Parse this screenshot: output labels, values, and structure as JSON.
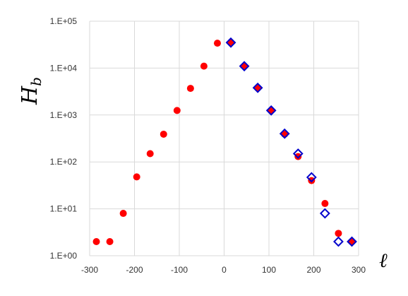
{
  "chart_data": {
    "type": "scatter",
    "title": "",
    "xlabel": "ℓ",
    "ylabel": "H",
    "ylabel_subscript": "b",
    "xlim": [
      -300,
      300
    ],
    "ylim": [
      1,
      100000
    ],
    "yscale": "log",
    "grid": true,
    "x_ticks": [
      -300,
      -200,
      -100,
      0,
      100,
      200,
      300
    ],
    "x_tick_labels": [
      "-300",
      "-200",
      "-100",
      "0",
      "100",
      "200",
      "300"
    ],
    "y_ticks": [
      1,
      10,
      100,
      1000,
      10000,
      100000
    ],
    "y_tick_labels": [
      "1.E+00",
      "1.E+01",
      "1.E+02",
      "1.E+03",
      "1.E+04",
      "1.E+05"
    ],
    "series": [
      {
        "marker": "filled-circle",
        "color": "#ff0000",
        "points": [
          [
            -285,
            2
          ],
          [
            -255,
            2
          ],
          [
            -225,
            8
          ],
          [
            -195,
            48
          ],
          [
            -165,
            150
          ],
          [
            -135,
            390
          ],
          [
            -105,
            1250
          ],
          [
            -75,
            3700
          ],
          [
            -45,
            11000
          ],
          [
            -15,
            34000
          ],
          [
            15,
            35000
          ],
          [
            45,
            11000
          ],
          [
            75,
            3800
          ],
          [
            105,
            1250
          ],
          [
            135,
            390
          ],
          [
            165,
            130
          ],
          [
            195,
            40
          ],
          [
            225,
            13
          ],
          [
            255,
            3
          ],
          [
            285,
            2
          ]
        ]
      },
      {
        "marker": "open-diamond",
        "color": "#0000cc",
        "points": [
          [
            15,
            35000
          ],
          [
            45,
            11000
          ],
          [
            75,
            3800
          ],
          [
            105,
            1250
          ],
          [
            135,
            400
          ],
          [
            165,
            150
          ],
          [
            195,
            47
          ],
          [
            225,
            8
          ],
          [
            255,
            2
          ],
          [
            285,
            2
          ]
        ]
      }
    ]
  }
}
